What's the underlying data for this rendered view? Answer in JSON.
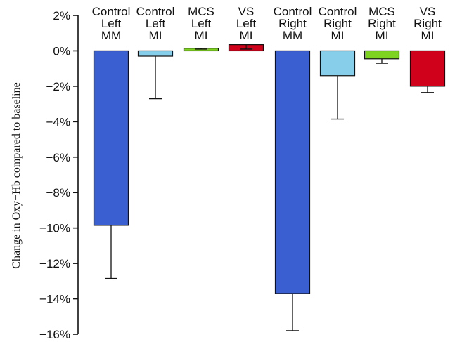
{
  "chart_data": {
    "type": "bar",
    "ylabel": "Change in Oxy−Hb compared to baseline",
    "ylim": [
      -16,
      2
    ],
    "yticks": [
      2,
      0,
      -2,
      -4,
      -6,
      -8,
      -10,
      -12,
      -14,
      -16
    ],
    "ytick_labels": [
      "2%",
      "0%",
      "−2%",
      "−4%",
      "−6%",
      "−8%",
      "−10%",
      "−12%",
      "−14%",
      "−16%"
    ],
    "grid": false,
    "legend": "none",
    "categories": [
      [
        "Control",
        "Left",
        "MM"
      ],
      [
        "Control",
        "Left",
        "MI"
      ],
      [
        "MCS",
        "Left",
        "MI"
      ],
      [
        "VS",
        "Left",
        "MI"
      ],
      [
        "Control",
        "Right",
        "MM"
      ],
      [
        "Control",
        "Right",
        "MI"
      ],
      [
        "MCS",
        "Right",
        "MI"
      ],
      [
        "VS",
        "Right",
        "MI"
      ]
    ],
    "values": [
      -9.85,
      -0.3,
      0.15,
      0.35,
      -13.7,
      -1.4,
      -0.45,
      -2.0
    ],
    "error_tips": [
      -12.85,
      -2.7,
      0.1,
      0.1,
      -15.8,
      -3.85,
      -0.7,
      -2.35
    ],
    "colors": [
      "#3a5fd0",
      "#87ceeb",
      "#7ed321",
      "#d0021b",
      "#3a5fd0",
      "#87ceeb",
      "#7ed321",
      "#d0021b"
    ]
  }
}
